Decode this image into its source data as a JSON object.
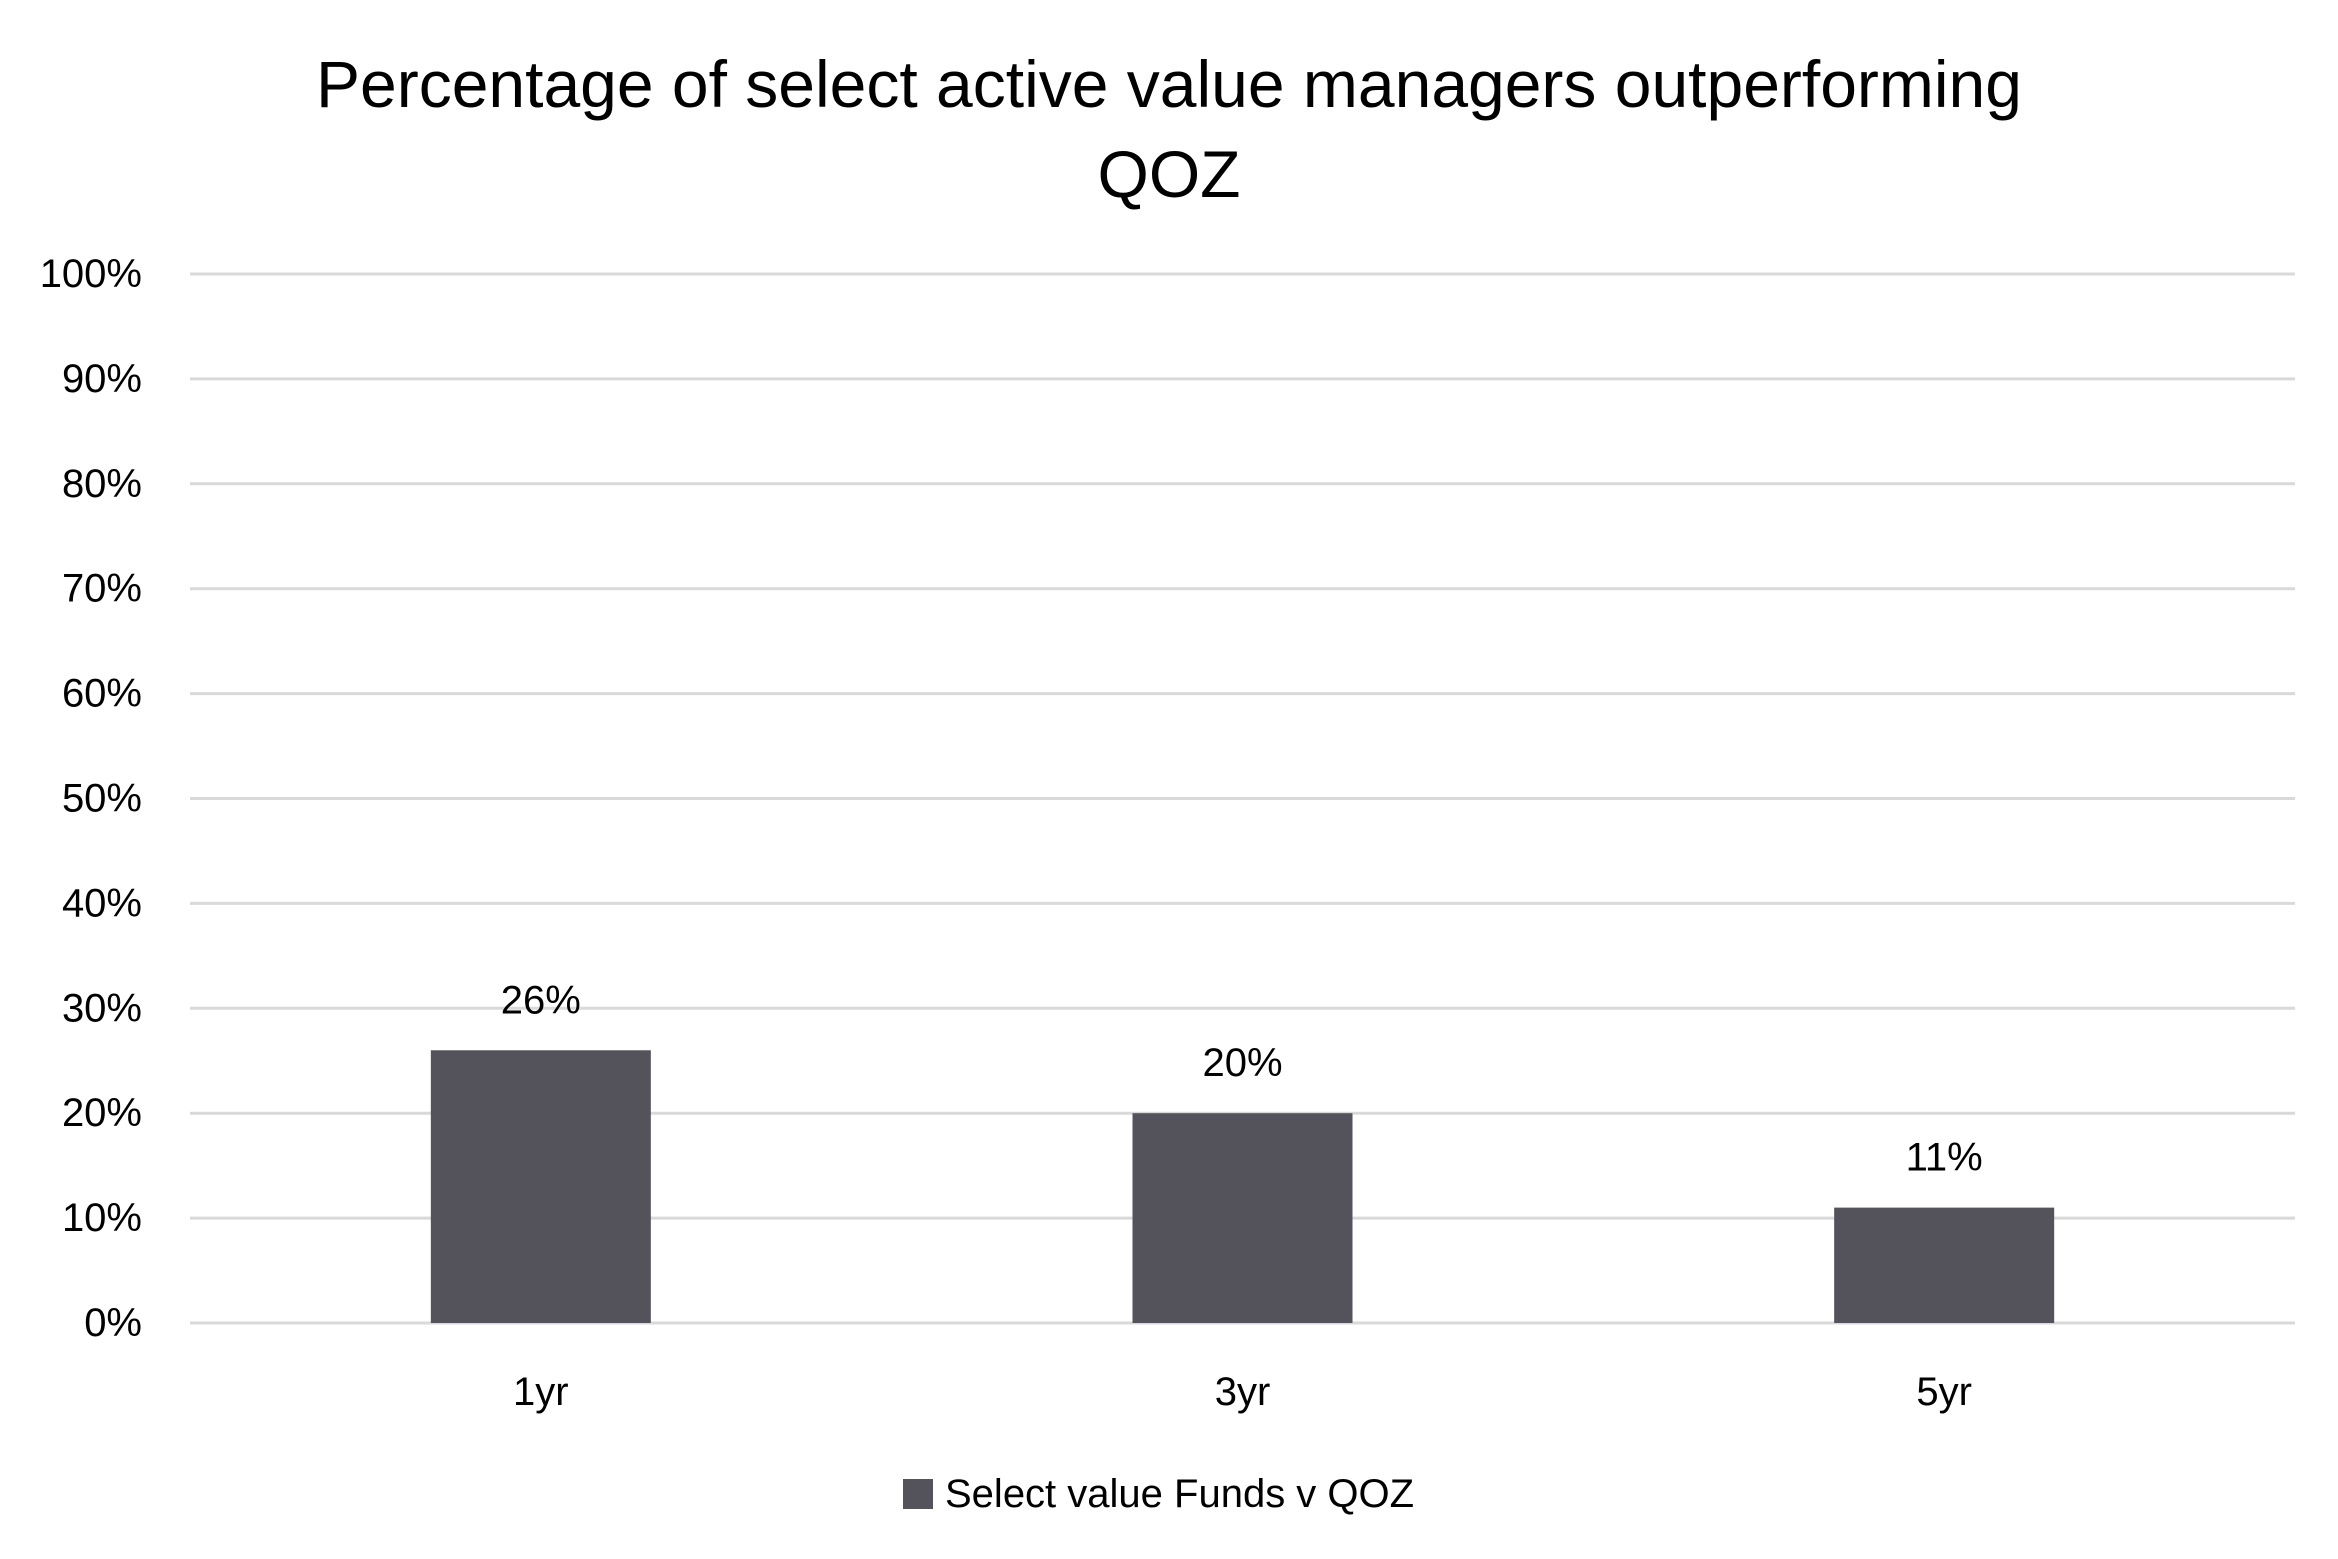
{
  "chart_data": {
    "type": "bar",
    "title_lines": [
      "Percentage of select active value managers outperforming",
      "QOZ"
    ],
    "categories": [
      "1yr",
      "3yr",
      "5yr"
    ],
    "series": [
      {
        "name": "Select value Funds v QOZ",
        "values": [
          26,
          20,
          11
        ],
        "data_labels": [
          "26%",
          "20%",
          "11%"
        ],
        "color": "#54525b"
      }
    ],
    "y_ticks": [
      0,
      10,
      20,
      30,
      40,
      50,
      60,
      70,
      80,
      90,
      100
    ],
    "y_tick_labels": [
      "0%",
      "10%",
      "20%",
      "30%",
      "40%",
      "50%",
      "60%",
      "70%",
      "80%",
      "90%",
      "100%"
    ],
    "ylim": [
      0,
      100
    ],
    "grid": true,
    "legend": "bottom-center",
    "colors": {
      "bar": "#54525b",
      "grid": "#d9d9d9",
      "text": "#000000",
      "background": "#ffffff"
    }
  }
}
